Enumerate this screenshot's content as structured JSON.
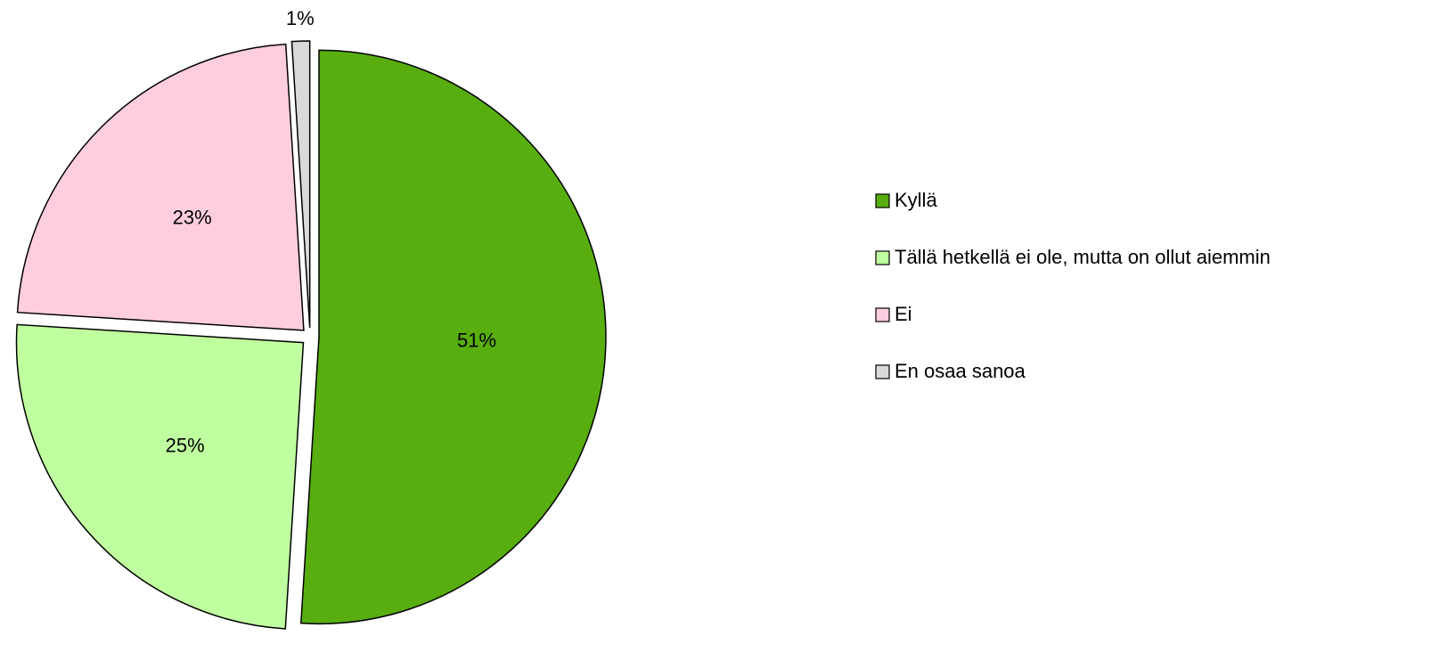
{
  "chart_data": {
    "type": "pie",
    "categories": [
      "Kyllä",
      "Tällä hetkellä ei ole, mutta on ollut aiemmin",
      "Ei",
      "En osaa sanoa"
    ],
    "values": [
      51,
      25,
      23,
      1
    ],
    "value_labels": [
      "51%",
      "25%",
      "23%",
      "1%"
    ],
    "colors": [
      "#58ad0f",
      "#c0ff9f",
      "#ffcde0",
      "#d9d9d9"
    ],
    "legend": "right"
  }
}
